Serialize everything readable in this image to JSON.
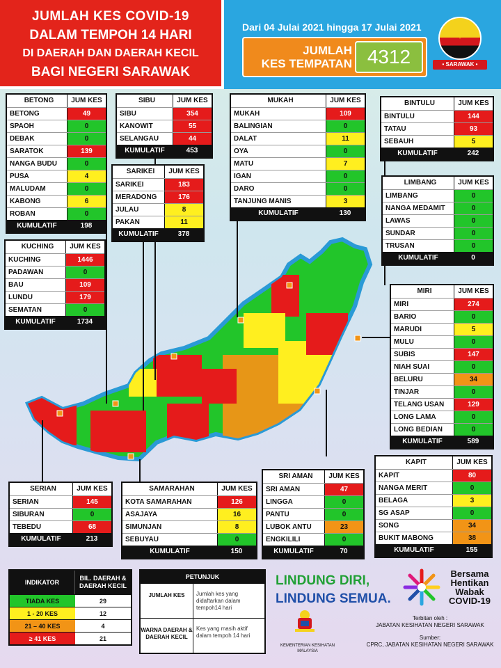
{
  "header": {
    "line1": "JUMLAH KES COVID-19",
    "line2": "DALAM TEMPOH 14 HARI",
    "line3": "DI DAERAH DAN DAERAH KECIL",
    "line4": "BAGI NEGERI SARAWAK",
    "date_range": "Dari 04 Julai 2021 hingga 17 Julai 2021",
    "total_label_1": "JUMLAH",
    "total_label_2": "KES TEMPATAN",
    "total_value": "4312",
    "emblem_text": "• SARAWAK •"
  },
  "column_header": "JUM KES",
  "footer_label": "KUMULATIF",
  "colors": {
    "red": "#e51b1b",
    "green": "#22c52a",
    "yellow": "#ffef1f",
    "orange": "#f29416"
  },
  "divisions": {
    "betong": {
      "name": "BETONG",
      "rows": [
        {
          "name": "BETONG",
          "value": "49",
          "level": "red"
        },
        {
          "name": "SPAOH",
          "value": "0",
          "level": "green"
        },
        {
          "name": "DEBAK",
          "value": "0",
          "level": "green"
        },
        {
          "name": "SARATOK",
          "value": "139",
          "level": "red"
        },
        {
          "name": "NANGA BUDU",
          "value": "0",
          "level": "green"
        },
        {
          "name": "PUSA",
          "value": "4",
          "level": "yellow"
        },
        {
          "name": "MALUDAM",
          "value": "0",
          "level": "green"
        },
        {
          "name": "KABONG",
          "value": "6",
          "level": "yellow"
        },
        {
          "name": "ROBAN",
          "value": "0",
          "level": "green"
        }
      ],
      "total": "198"
    },
    "sibu": {
      "name": "SIBU",
      "rows": [
        {
          "name": "SIBU",
          "value": "354",
          "level": "red"
        },
        {
          "name": "KANOWIT",
          "value": "55",
          "level": "red"
        },
        {
          "name": "SELANGAU",
          "value": "44",
          "level": "red"
        }
      ],
      "total": "453"
    },
    "sarikei": {
      "name": "SARIKEI",
      "rows": [
        {
          "name": "SARIKEI",
          "value": "183",
          "level": "red"
        },
        {
          "name": "MERADONG",
          "value": "176",
          "level": "red"
        },
        {
          "name": "JULAU",
          "value": "8",
          "level": "yellow"
        },
        {
          "name": "PAKAN",
          "value": "11",
          "level": "yellow"
        }
      ],
      "total": "378"
    },
    "mukah": {
      "name": "MUKAH",
      "rows": [
        {
          "name": "MUKAH",
          "value": "109",
          "level": "red"
        },
        {
          "name": "BALINGIAN",
          "value": "0",
          "level": "green"
        },
        {
          "name": "DALAT",
          "value": "11",
          "level": "yellow"
        },
        {
          "name": "OYA",
          "value": "0",
          "level": "green"
        },
        {
          "name": "MATU",
          "value": "7",
          "level": "yellow"
        },
        {
          "name": "IGAN",
          "value": "0",
          "level": "green"
        },
        {
          "name": "DARO",
          "value": "0",
          "level": "green"
        },
        {
          "name": "TANJUNG MANIS",
          "value": "3",
          "level": "yellow"
        }
      ],
      "total": "130"
    },
    "bintulu": {
      "name": "BINTULU",
      "rows": [
        {
          "name": "BINTULU",
          "value": "144",
          "level": "red"
        },
        {
          "name": "TATAU",
          "value": "93",
          "level": "red"
        },
        {
          "name": "SEBAUH",
          "value": "5",
          "level": "yellow"
        }
      ],
      "total": "242"
    },
    "limbang": {
      "name": "LIMBANG",
      "rows": [
        {
          "name": "LIMBANG",
          "value": "0",
          "level": "green"
        },
        {
          "name": "NANGA MEDAMIT",
          "value": "0",
          "level": "green"
        },
        {
          "name": "LAWAS",
          "value": "0",
          "level": "green"
        },
        {
          "name": "SUNDAR",
          "value": "0",
          "level": "green"
        },
        {
          "name": "TRUSAN",
          "value": "0",
          "level": "green"
        }
      ],
      "total": "0"
    },
    "kuching": {
      "name": "KUCHING",
      "rows": [
        {
          "name": "KUCHING",
          "value": "1446",
          "level": "red"
        },
        {
          "name": "PADAWAN",
          "value": "0",
          "level": "green"
        },
        {
          "name": "BAU",
          "value": "109",
          "level": "red"
        },
        {
          "name": "LUNDU",
          "value": "179",
          "level": "red"
        },
        {
          "name": "SEMATAN",
          "value": "0",
          "level": "green"
        }
      ],
      "total": "1734"
    },
    "miri": {
      "name": "MIRI",
      "rows": [
        {
          "name": "MIRI",
          "value": "274",
          "level": "red"
        },
        {
          "name": "BARIO",
          "value": "0",
          "level": "green"
        },
        {
          "name": "MARUDI",
          "value": "5",
          "level": "yellow"
        },
        {
          "name": "MULU",
          "value": "0",
          "level": "green"
        },
        {
          "name": "SUBIS",
          "value": "147",
          "level": "red"
        },
        {
          "name": "NIAH SUAI",
          "value": "0",
          "level": "green"
        },
        {
          "name": "BELURU",
          "value": "34",
          "level": "orange"
        },
        {
          "name": "TINJAR",
          "value": "0",
          "level": "green"
        },
        {
          "name": "TELANG USAN",
          "value": "129",
          "level": "red"
        },
        {
          "name": "LONG LAMA",
          "value": "0",
          "level": "green"
        },
        {
          "name": "LONG BEDIAN",
          "value": "0",
          "level": "green"
        }
      ],
      "total": "589"
    },
    "kapit": {
      "name": "KAPIT",
      "rows": [
        {
          "name": "KAPIT",
          "value": "80",
          "level": "red"
        },
        {
          "name": "NANGA MERIT",
          "value": "0",
          "level": "green"
        },
        {
          "name": "BELAGA",
          "value": "3",
          "level": "yellow"
        },
        {
          "name": "SG ASAP",
          "value": "0",
          "level": "green"
        },
        {
          "name": "SONG",
          "value": "34",
          "level": "orange"
        },
        {
          "name": "BUKIT MABONG",
          "value": "38",
          "level": "orange"
        }
      ],
      "total": "155"
    },
    "sri_aman": {
      "name": "SRI AMAN",
      "rows": [
        {
          "name": "SRI AMAN",
          "value": "47",
          "level": "red"
        },
        {
          "name": "LINGGA",
          "value": "0",
          "level": "green"
        },
        {
          "name": "PANTU",
          "value": "0",
          "level": "green"
        },
        {
          "name": "LUBOK ANTU",
          "value": "23",
          "level": "orange"
        },
        {
          "name": "ENGKILILI",
          "value": "0",
          "level": "green"
        }
      ],
      "total": "70"
    },
    "samarahan": {
      "name": "SAMARAHAN",
      "rows": [
        {
          "name": "KOTA SAMARAHAN",
          "value": "126",
          "level": "red"
        },
        {
          "name": "ASAJAYA",
          "value": "16",
          "level": "yellow"
        },
        {
          "name": "SIMUNJAN",
          "value": "8",
          "level": "yellow"
        },
        {
          "name": "SEBUYAU",
          "value": "0",
          "level": "green"
        }
      ],
      "total": "150"
    },
    "serian": {
      "name": "SERIAN",
      "rows": [
        {
          "name": "SERIAN",
          "value": "145",
          "level": "red"
        },
        {
          "name": "SIBURAN",
          "value": "0",
          "level": "green"
        },
        {
          "name": "TEBEDU",
          "value": "68",
          "level": "red"
        }
      ],
      "total": "213"
    }
  },
  "legend": {
    "col1": "INDIKATOR",
    "col2": "BIL. DAERAH & DAERAH KECIL",
    "rows": [
      {
        "label": "TIADA KES",
        "count": "29",
        "level": "green"
      },
      {
        "label": "1 - 20 KES",
        "count": "12",
        "level": "yellow"
      },
      {
        "label": "21 – 40 KES",
        "count": "4",
        "level": "orange"
      },
      {
        "label": "≥ 41 KES",
        "count": "21",
        "level": "red"
      }
    ]
  },
  "petunjuk": {
    "title": "PETUNJUK",
    "rows": [
      {
        "term": "JUMLAH KES",
        "desc": "Jumlah kes yang didaftarkan dalam tempoh14 hari"
      },
      {
        "term": "WARNA DAERAH & DAERAH KECIL",
        "desc": "Kes yang masih aktif dalam tempoh 14 hari"
      }
    ]
  },
  "slogan": {
    "line1": "LINDUNG DIRI,",
    "line2": "LINDUNG SEMUA."
  },
  "kkm": "KEMENTERIAN KESIHATAN MALAYSIA",
  "bersama": [
    "Bersama",
    "Hentikan",
    "Wabak",
    "COVID-19"
  ],
  "terbitan": {
    "label": "Terbitan oleh :",
    "value": "JABATAN KESIHATAN NEGERI SARAWAK"
  },
  "sumber": {
    "label": "Sumber:",
    "value": "CPRC, JABATAN KESIHATAN NEGERI SARAWAK"
  }
}
